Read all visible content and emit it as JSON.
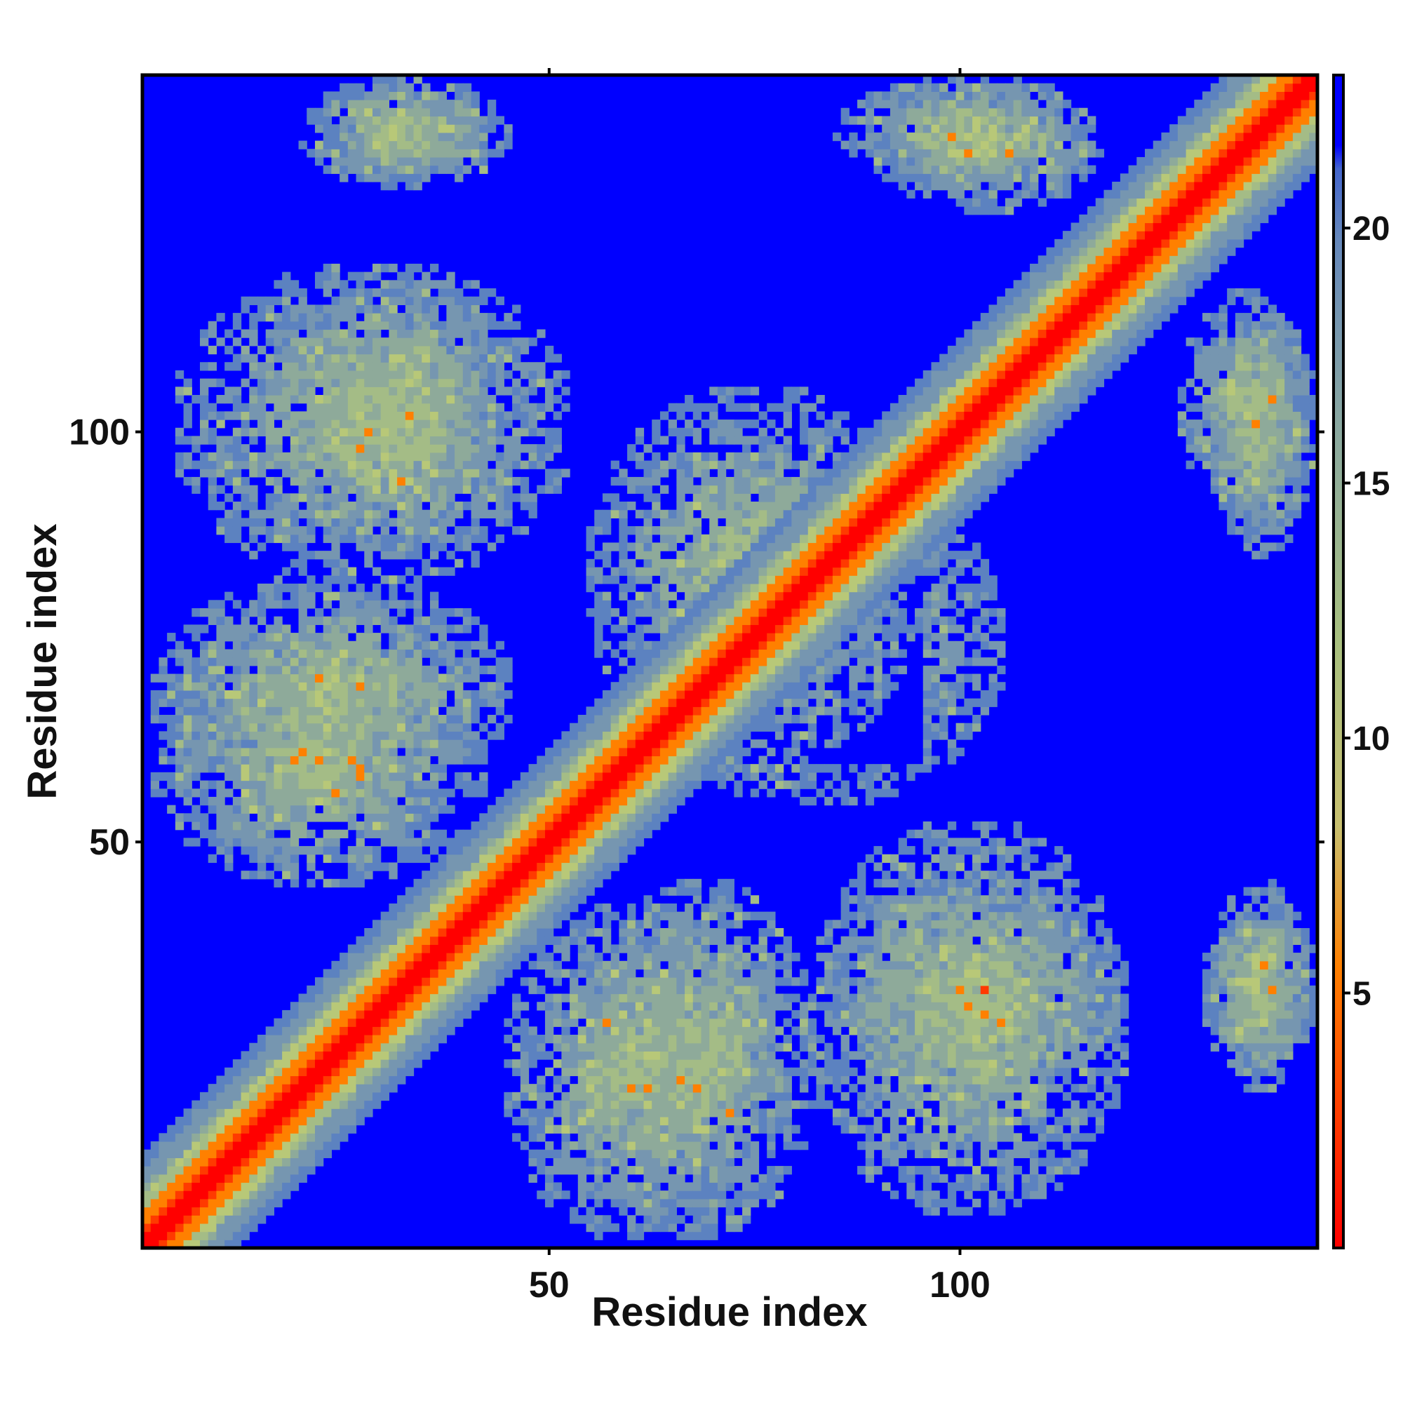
{
  "chart_data": {
    "type": "heatmap",
    "title": "",
    "xlabel": "Residue index",
    "ylabel": "Residue index",
    "xlim": [
      1,
      143
    ],
    "ylim": [
      1,
      143
    ],
    "x_ticks": [
      50,
      100
    ],
    "y_ticks": [
      50,
      100
    ],
    "colorbar": {
      "ticks": [
        5,
        10,
        15,
        20
      ],
      "range": [
        0,
        23
      ],
      "colors": [
        "#ff0000",
        "#ff7f00",
        "#a8c880",
        "#6a8fb8",
        "#0000ff"
      ]
    },
    "background_value_color": "#0000ff",
    "diagonal_band": {
      "core_halfwidth": 1.2,
      "inner_halfwidth": 4,
      "outer_halfwidth": 11,
      "values": [
        1,
        6,
        11,
        18
      ]
    },
    "contact_regions": [
      {
        "i": [
          20,
          44
        ],
        "j": [
          85,
          120
        ]
      },
      {
        "i": [
          2,
          45
        ],
        "j": [
          55,
          82
        ]
      },
      {
        "i": [
          55,
          95
        ],
        "j": [
          60,
          105
        ]
      },
      {
        "i": [
          45,
          75
        ],
        "j": [
          2,
          42
        ]
      },
      {
        "i": [
          82,
          120
        ],
        "j": [
          5,
          52
        ]
      },
      {
        "i": [
          22,
          45
        ],
        "j": [
          130,
          143
        ]
      },
      {
        "i": [
          85,
          115
        ],
        "j": [
          130,
          143
        ]
      },
      {
        "i": [
          127,
          143
        ],
        "j": [
          90,
          117
        ]
      },
      {
        "i": [
          130,
          143
        ],
        "j": [
          20,
          42
        ]
      }
    ]
  }
}
